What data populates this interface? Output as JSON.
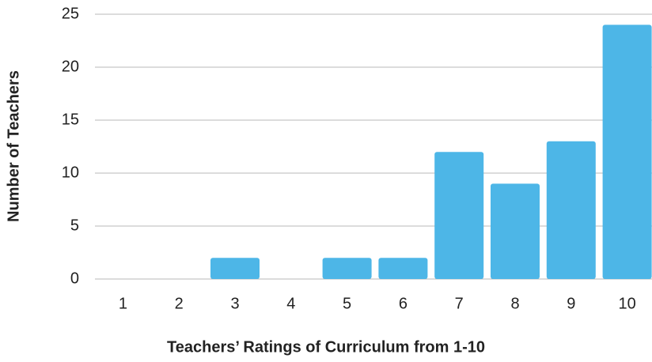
{
  "chart_data": {
    "type": "bar",
    "x_label": "Teachers’ Ratings of Curriculum from 1-10",
    "y_label": "Number of Teachers",
    "categories": [
      "1",
      "2",
      "3",
      "4",
      "5",
      "6",
      "7",
      "8",
      "9",
      "10"
    ],
    "values": [
      0,
      0,
      2,
      0,
      2,
      2,
      12,
      9,
      13,
      24
    ],
    "color": "#4db6e7",
    "ylim": [
      0,
      25
    ],
    "yticks": [
      0,
      5,
      10,
      15,
      20,
      25
    ],
    "grid": true
  }
}
